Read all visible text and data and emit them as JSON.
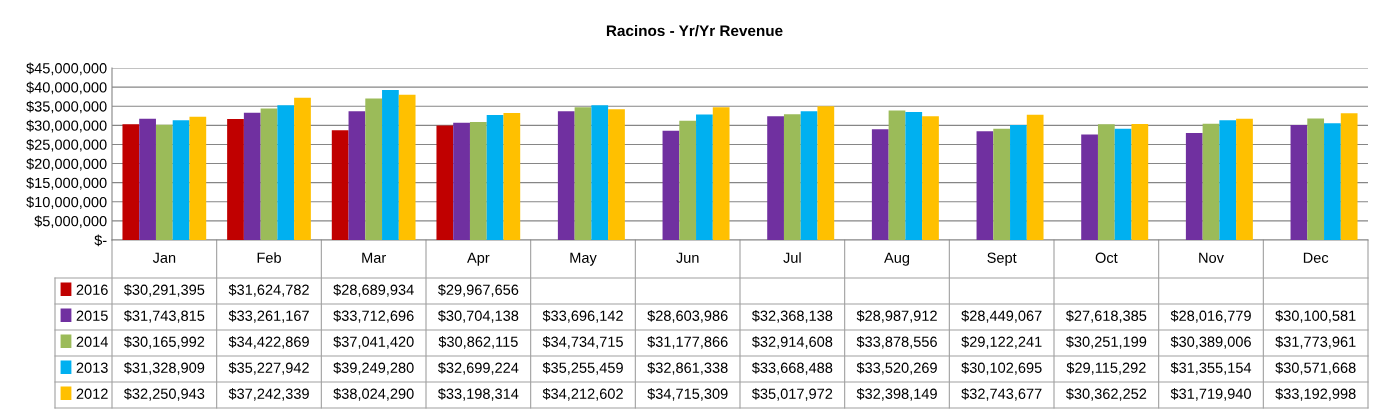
{
  "chart_data": {
    "type": "bar",
    "title": "Racinos - Yr/Yr Revenue",
    "categories": [
      "Jan",
      "Feb",
      "Mar",
      "Apr",
      "May",
      "Jun",
      "Jul",
      "Aug",
      "Sept",
      "Oct",
      "Nov",
      "Dec"
    ],
    "series": [
      {
        "name": "2016",
        "color": "#c00000",
        "values": [
          30291395,
          31624782,
          28689934,
          29967656,
          null,
          null,
          null,
          null,
          null,
          null,
          null,
          null
        ],
        "value_labels": [
          "$30,291,395",
          "$31,624,782",
          "$28,689,934",
          "$29,967,656",
          null,
          null,
          null,
          null,
          null,
          null,
          null,
          null
        ]
      },
      {
        "name": "2015",
        "color": "#7030a0",
        "values": [
          31743815,
          33261167,
          33712696,
          30704138,
          33696142,
          28603986,
          32368138,
          28987912,
          28449067,
          27618385,
          28016779,
          30100581
        ],
        "value_labels": [
          "$31,743,815",
          "$33,261,167",
          "$33,712,696",
          "$30,704,138",
          "$33,696,142",
          "$28,603,986",
          "$32,368,138",
          "$28,987,912",
          "$28,449,067",
          "$27,618,385",
          "$28,016,779",
          "$30,100,581"
        ]
      },
      {
        "name": "2014",
        "color": "#9bbb59",
        "values": [
          30165992,
          34422869,
          37041420,
          30862115,
          34734715,
          31177866,
          32914608,
          33878556,
          29122241,
          30251199,
          30389006,
          31773961
        ],
        "value_labels": [
          "$30,165,992",
          "$34,422,869",
          "$37,041,420",
          "$30,862,115",
          "$34,734,715",
          "$31,177,866",
          "$32,914,608",
          "$33,878,556",
          "$29,122,241",
          "$30,251,199",
          "$30,389,006",
          "$31,773,961"
        ]
      },
      {
        "name": "2013",
        "color": "#00b0f0",
        "values": [
          31328909,
          35227942,
          39249280,
          32699224,
          35255459,
          32861338,
          33668488,
          33520269,
          30102695,
          29115292,
          31355154,
          30571668
        ],
        "value_labels": [
          "$31,328,909",
          "$35,227,942",
          "$39,249,280",
          "$32,699,224",
          "$35,255,459",
          "$32,861,338",
          "$33,668,488",
          "$33,520,269",
          "$30,102,695",
          "$29,115,292",
          "$31,355,154",
          "$30,571,668"
        ]
      },
      {
        "name": "2012",
        "color": "#ffc000",
        "values": [
          32250943,
          37242339,
          38024290,
          33198314,
          34212602,
          34715309,
          35017972,
          32398149,
          32743677,
          30362252,
          31719940,
          33192998
        ],
        "value_labels": [
          "$32,250,943",
          "$37,242,339",
          "$38,024,290",
          "$33,198,314",
          "$34,212,602",
          "$34,715,309",
          "$35,017,972",
          "$32,398,149",
          "$32,743,677",
          "$30,362,252",
          "$31,719,940",
          "$33,192,998"
        ]
      }
    ],
    "ylim": [
      0,
      45000000
    ],
    "yticks": [
      {
        "value": 0,
        "label": "$-"
      },
      {
        "value": 5000000,
        "label": "$5,000,000"
      },
      {
        "value": 10000000,
        "label": "$10,000,000"
      },
      {
        "value": 15000000,
        "label": "$15,000,000"
      },
      {
        "value": 20000000,
        "label": "$20,000,000"
      },
      {
        "value": 25000000,
        "label": "$25,000,000"
      },
      {
        "value": 30000000,
        "label": "$30,000,000"
      },
      {
        "value": 35000000,
        "label": "$35,000,000"
      },
      {
        "value": 40000000,
        "label": "$40,000,000"
      },
      {
        "value": 45000000,
        "label": "$45,000,000"
      }
    ],
    "grid": "y",
    "legend": "bottom left"
  }
}
